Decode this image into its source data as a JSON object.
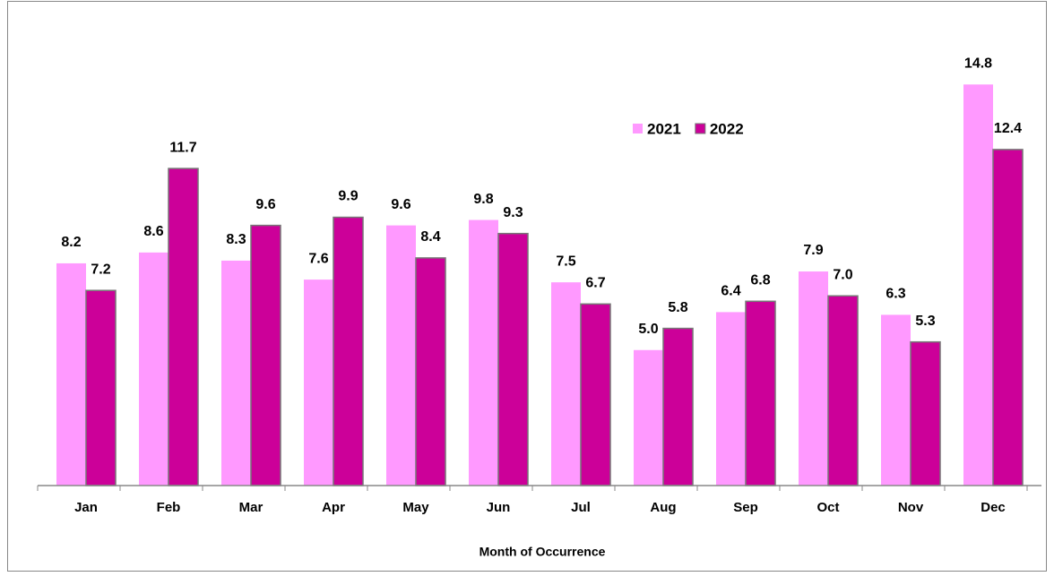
{
  "chart_data": {
    "type": "bar",
    "x_label": "Month of Occurrence",
    "categories": [
      "Jan",
      "Feb",
      "Mar",
      "Apr",
      "May",
      "Jun",
      "Jul",
      "Aug",
      "Sep",
      "Oct",
      "Nov",
      "Dec"
    ],
    "series": [
      {
        "name": "2021",
        "color": "#ff99ff",
        "values": [
          8.2,
          8.6,
          8.3,
          7.6,
          9.6,
          9.8,
          7.5,
          5.0,
          6.4,
          7.9,
          6.3,
          14.8
        ],
        "value_labels": [
          "8.2",
          "8.6",
          "8.3",
          "7.6",
          "9.6",
          "9.8",
          "7.5",
          "5.0",
          "6.4",
          "7.9",
          "6.3",
          "14.8"
        ]
      },
      {
        "name": "2022",
        "color": "#cc0099",
        "values": [
          7.2,
          11.7,
          9.6,
          9.9,
          8.4,
          9.3,
          6.7,
          5.8,
          6.8,
          7.0,
          5.3,
          12.4
        ],
        "value_labels": [
          "7.2",
          "11.7",
          "9.6",
          "9.9",
          "8.4",
          "9.3",
          "6.7",
          "5.8",
          "6.8",
          "7.0",
          "5.3",
          "12.4"
        ]
      }
    ],
    "ylim": [
      0,
      16
    ],
    "legend": "top-right"
  }
}
